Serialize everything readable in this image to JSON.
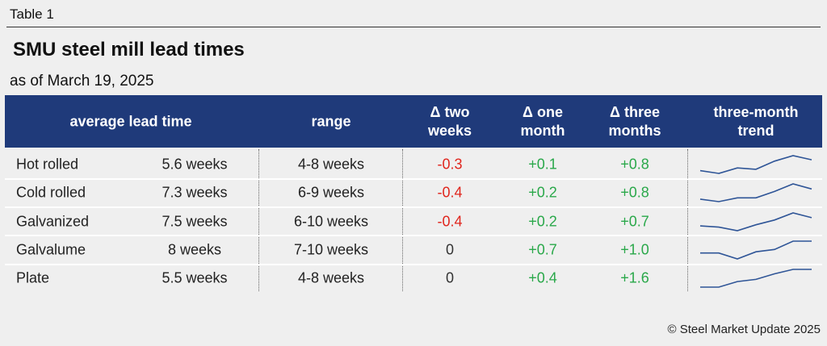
{
  "table_label": "Table 1",
  "title": "SMU steel mill lead times",
  "subtitle": "as of March 19, 2025",
  "columns": [
    "average lead time",
    "range",
    "Δ two weeks",
    "Δ one month",
    "Δ three months",
    "three-month trend"
  ],
  "rows": [
    {
      "product": "Hot rolled",
      "lead_time": "5.6 weeks",
      "range": "4-8 weeks",
      "two_weeks": "-0.3",
      "one_month": "+0.1",
      "three_months": "+0.8",
      "trend": [
        4.8,
        4.6,
        5.0,
        4.9,
        5.5,
        5.9,
        5.6
      ]
    },
    {
      "product": "Cold rolled",
      "lead_time": "7.3 weeks",
      "range": "6-9 weeks",
      "two_weeks": "-0.4",
      "one_month": "+0.2",
      "three_months": "+0.8",
      "trend": [
        6.5,
        6.3,
        6.6,
        6.6,
        7.1,
        7.7,
        7.3
      ]
    },
    {
      "product": "Galvanized",
      "lead_time": "7.5 weeks",
      "range": "6-10 weeks",
      "two_weeks": "-0.4",
      "one_month": "+0.2",
      "three_months": "+0.7",
      "trend": [
        6.8,
        6.7,
        6.4,
        6.9,
        7.3,
        7.9,
        7.5
      ]
    },
    {
      "product": "Galvalume",
      "lead_time": "8 weeks",
      "range": "7-10 weeks",
      "two_weeks": "0",
      "one_month": "+0.7",
      "three_months": "+1.0",
      "trend": [
        7.0,
        7.0,
        6.5,
        7.1,
        7.3,
        8,
        8
      ]
    },
    {
      "product": "Plate",
      "lead_time": "5.5 weeks",
      "range": "4-8 weeks",
      "two_weeks": "0",
      "one_month": "+0.4",
      "three_months": "+1.6",
      "trend": [
        3.9,
        3.9,
        4.4,
        4.6,
        5.1,
        5.5,
        5.5
      ]
    }
  ],
  "footer": "© Steel Market Update 2025"
}
